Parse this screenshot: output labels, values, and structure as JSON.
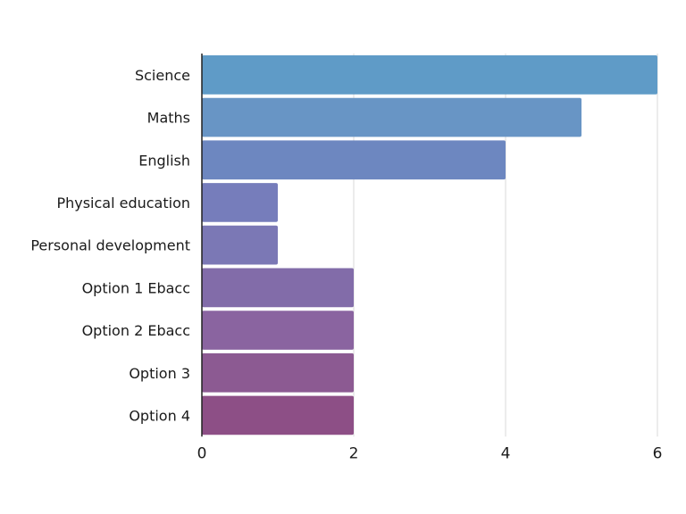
{
  "chart_data": {
    "type": "bar",
    "orientation": "horizontal",
    "categories": [
      "Science",
      "Maths",
      "English",
      "Physical education",
      "Personal development",
      "Option 1 Ebacc",
      "Option 2 Ebacc",
      "Option 3",
      "Option 4"
    ],
    "values": [
      6,
      5,
      4,
      1,
      1,
      2,
      2,
      2,
      2
    ],
    "colors": [
      "#5f9bc7",
      "#6895c5",
      "#6d87c0",
      "#767dbb",
      "#7b78b5",
      "#826ca9",
      "#8a64a0",
      "#8c5a92",
      "#8d4f86"
    ],
    "xlim": [
      0,
      6
    ],
    "xticks": [
      0,
      2,
      4,
      6
    ],
    "grid": true
  }
}
